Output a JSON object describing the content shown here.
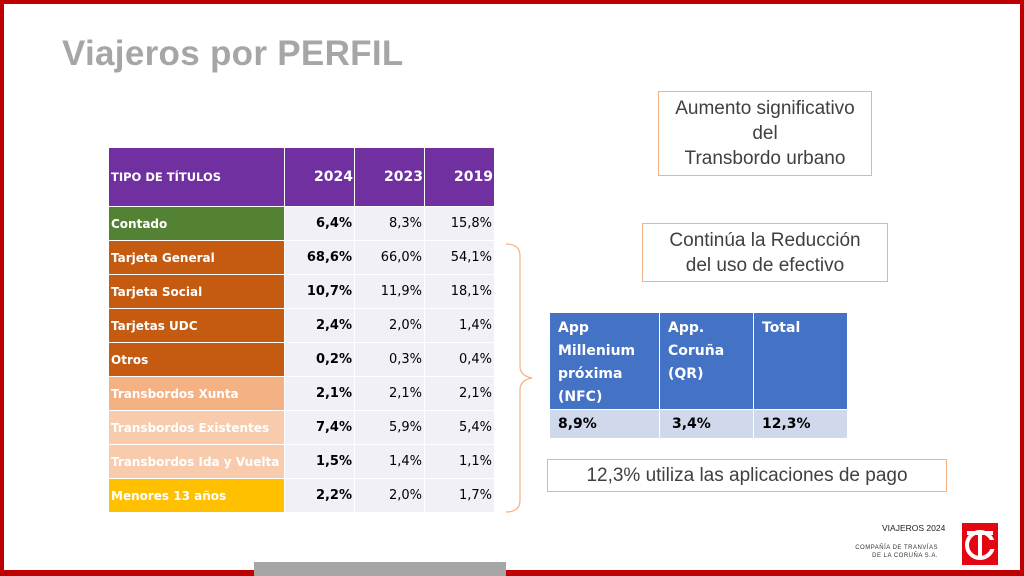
{
  "title": "Viajeros por PERFIL",
  "table": {
    "headers": [
      "TIPO DE TÍTULOS",
      "2024",
      "2023",
      "2019"
    ],
    "rows": [
      {
        "label": "Contado",
        "color": "#548235",
        "v2024": "6,4%",
        "v2023": "8,3%",
        "v2019": "15,8%"
      },
      {
        "label": "Tarjeta General",
        "color": "#c55a11",
        "v2024": "68,6%",
        "v2023": "66,0%",
        "v2019": "54,1%"
      },
      {
        "label": "Tarjeta Social",
        "color": "#c55a11",
        "v2024": "10,7%",
        "v2023": "11,9%",
        "v2019": "18,1%"
      },
      {
        "label": "Tarjetas UDC",
        "color": "#c55a11",
        "v2024": "2,4%",
        "v2023": "2,0%",
        "v2019": "1,4%"
      },
      {
        "label": "Otros",
        "color": "#c55a11",
        "v2024": "0,2%",
        "v2023": "0,3%",
        "v2019": "0,4%"
      },
      {
        "label": "Transbordos Xunta",
        "color": "#f4b183",
        "v2024": "2,1%",
        "v2023": "2,1%",
        "v2019": "2,1%"
      },
      {
        "label": "Transbordos Existentes",
        "color": "#f8cbad",
        "v2024": "7,4%",
        "v2023": "5,9%",
        "v2019": "5,4%"
      },
      {
        "label": "Transbordos Ida y Vuelta",
        "color": "#f8cbad",
        "v2024": "1,5%",
        "v2023": "1,4%",
        "v2019": "1,1%"
      },
      {
        "label": "Menores 13 años",
        "color": "#ffc000",
        "v2024": "2,2%",
        "v2023": "2,0%",
        "v2019": "1,7%"
      }
    ]
  },
  "callouts": {
    "transbordo": [
      "Aumento significativo",
      "del",
      "Transbordo urbano"
    ],
    "efectivo": [
      "Continúa la Reducción",
      "del uso de efectivo"
    ],
    "aplicaciones": "12,3% utiliza las aplicaciones de pago"
  },
  "app_table": {
    "headers": [
      [
        "App",
        "Millenium",
        "próxima",
        "(NFC)"
      ],
      [
        "App.",
        "Coruña",
        "(QR)"
      ],
      [
        "Total"
      ]
    ],
    "values": [
      "8,9%",
      "3,4%",
      "12,3%"
    ]
  },
  "footer": {
    "title": "VIAJEROS 2024",
    "company": [
      "COMPAÑÍA DE TRANVÍAS",
      "DE LA CORUÑA S.A."
    ]
  }
}
